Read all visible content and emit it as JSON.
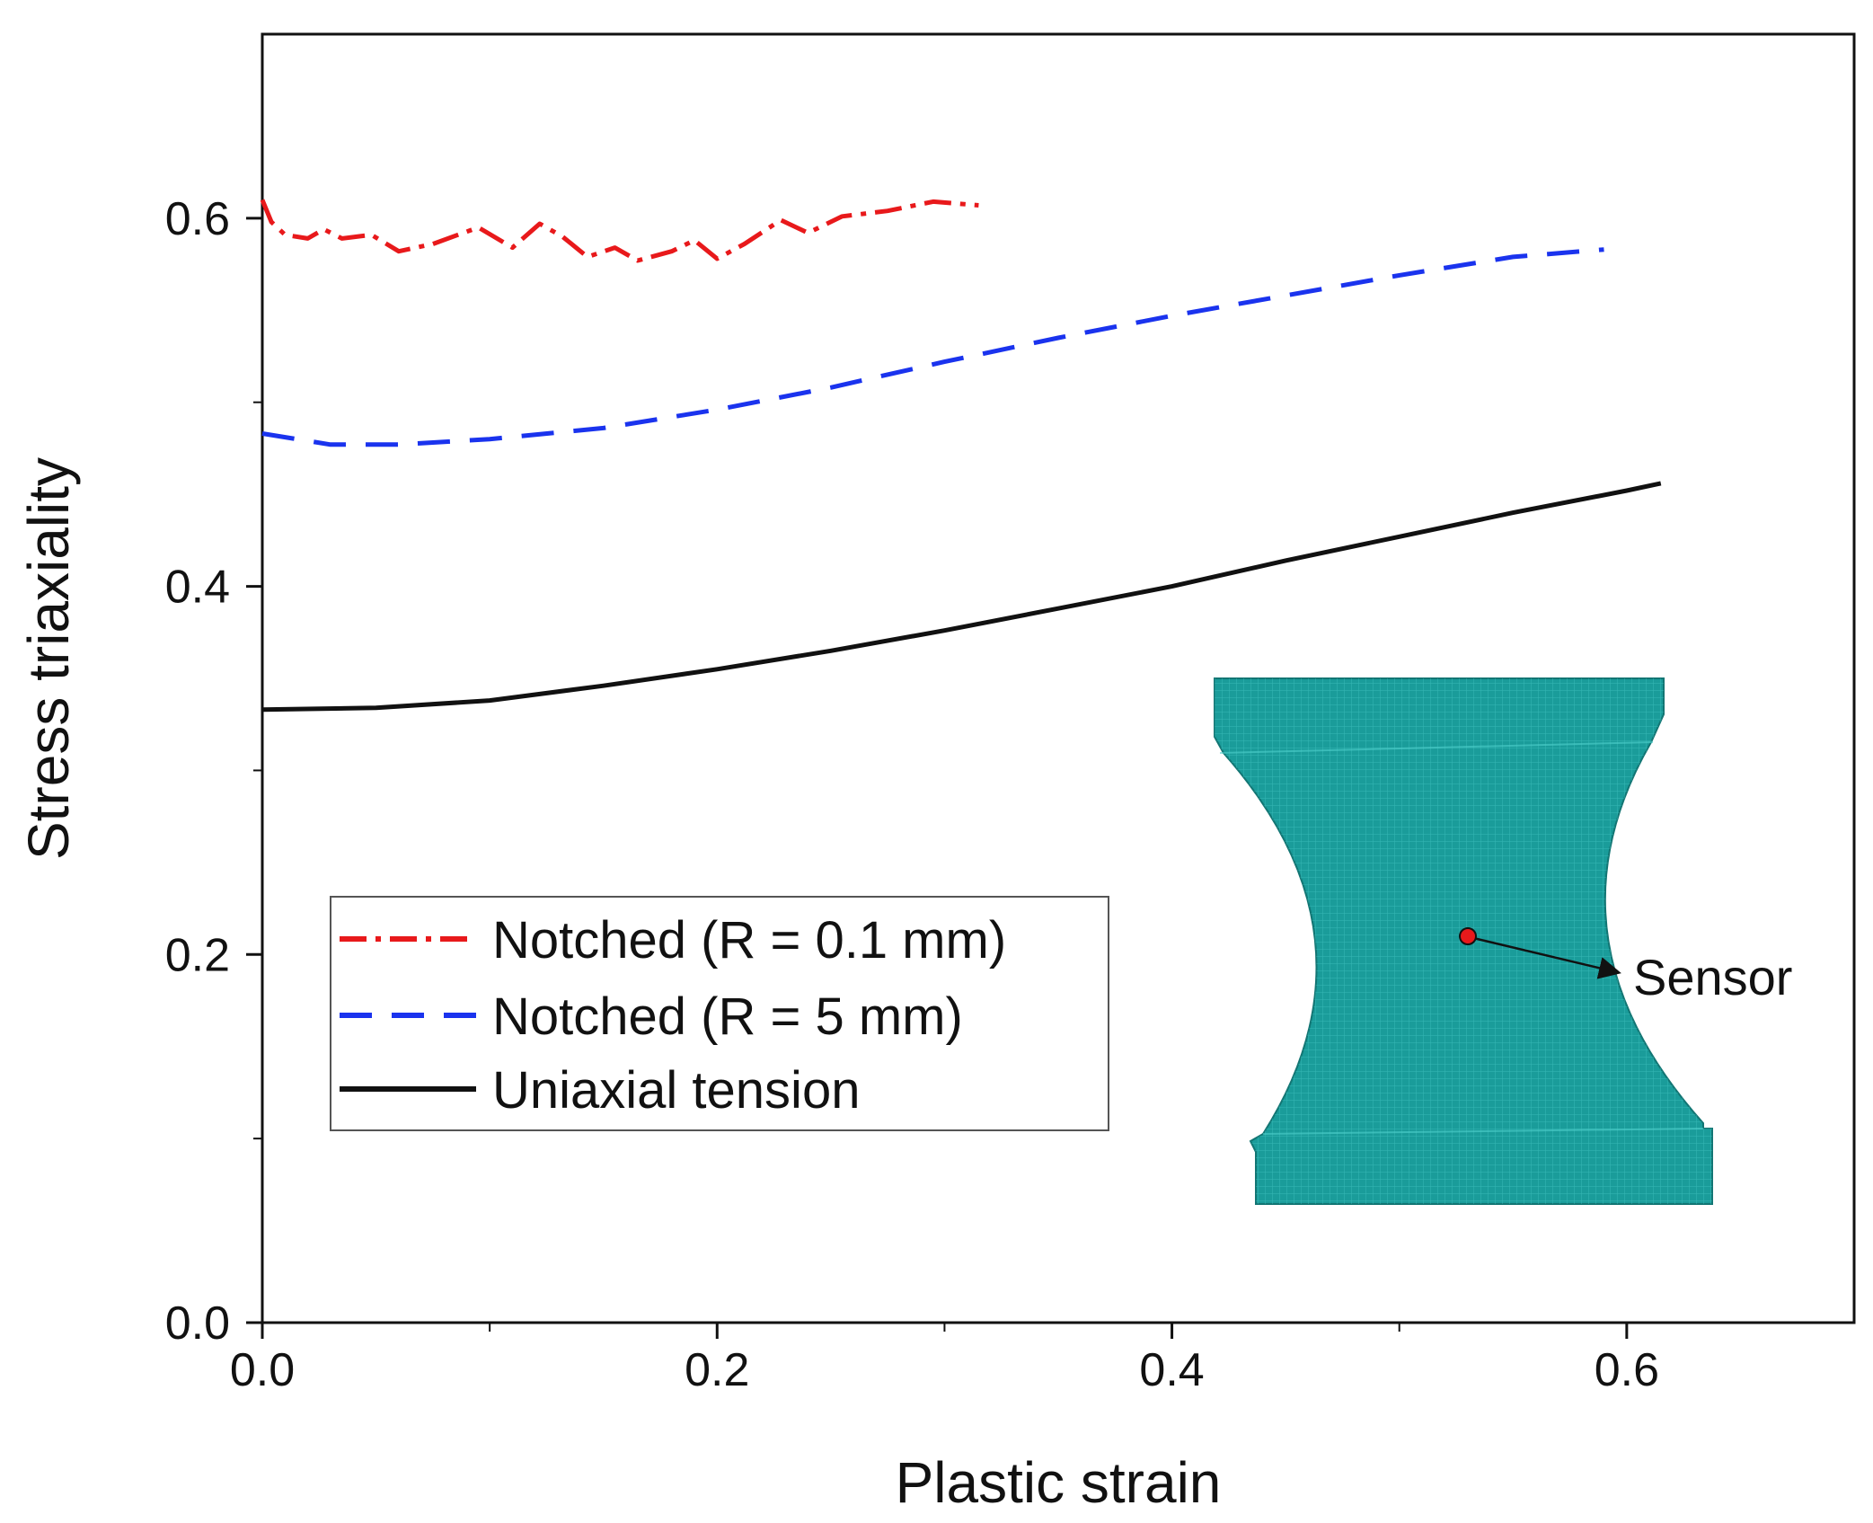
{
  "chart_data": {
    "type": "line",
    "title": "",
    "xlabel": "Plastic strain",
    "ylabel": "Stress triaxiality",
    "xlim": [
      0,
      0.7
    ],
    "ylim": [
      0,
      0.7
    ],
    "x_ticks": [
      0,
      0.2,
      0.4,
      0.6
    ],
    "x_tick_labels": [
      "0.0",
      "0.2",
      "0.4",
      "0.6"
    ],
    "x_minor_ticks": [
      0.1,
      0.3,
      0.5
    ],
    "y_ticks": [
      0,
      0.2,
      0.4,
      0.6
    ],
    "y_tick_labels": [
      "0.0",
      "0.2",
      "0.4",
      "0.6"
    ],
    "y_minor_ticks": [
      0.1,
      0.3,
      0.5
    ],
    "grid": false,
    "legend_position": "center-left",
    "series": [
      {
        "name": "Notched (R = 0.1 mm)",
        "color": "#e8191b",
        "dash": "dash-dot",
        "points": [
          [
            0.0,
            0.61
          ],
          [
            0.004,
            0.598
          ],
          [
            0.01,
            0.591
          ],
          [
            0.02,
            0.589
          ],
          [
            0.027,
            0.594
          ],
          [
            0.035,
            0.589
          ],
          [
            0.048,
            0.591
          ],
          [
            0.06,
            0.582
          ],
          [
            0.075,
            0.586
          ],
          [
            0.095,
            0.595
          ],
          [
            0.11,
            0.584
          ],
          [
            0.122,
            0.597
          ],
          [
            0.132,
            0.59
          ],
          [
            0.143,
            0.579
          ],
          [
            0.155,
            0.584
          ],
          [
            0.165,
            0.577
          ],
          [
            0.18,
            0.582
          ],
          [
            0.19,
            0.588
          ],
          [
            0.2,
            0.578
          ],
          [
            0.212,
            0.586
          ],
          [
            0.228,
            0.599
          ],
          [
            0.24,
            0.592
          ],
          [
            0.255,
            0.601
          ],
          [
            0.275,
            0.604
          ],
          [
            0.295,
            0.609
          ],
          [
            0.315,
            0.607
          ]
        ]
      },
      {
        "name": "Notched (R = 5 mm)",
        "color": "#1a33ee",
        "dash": "dash",
        "points": [
          [
            0.0,
            0.483
          ],
          [
            0.03,
            0.477
          ],
          [
            0.06,
            0.477
          ],
          [
            0.1,
            0.48
          ],
          [
            0.15,
            0.486
          ],
          [
            0.2,
            0.496
          ],
          [
            0.25,
            0.508
          ],
          [
            0.3,
            0.522
          ],
          [
            0.35,
            0.535
          ],
          [
            0.4,
            0.547
          ],
          [
            0.45,
            0.558
          ],
          [
            0.5,
            0.569
          ],
          [
            0.55,
            0.579
          ],
          [
            0.59,
            0.583
          ]
        ]
      },
      {
        "name": "Uniaxial tension",
        "color": "#111111",
        "dash": "solid",
        "points": [
          [
            0.0,
            0.333
          ],
          [
            0.05,
            0.334
          ],
          [
            0.1,
            0.338
          ],
          [
            0.15,
            0.346
          ],
          [
            0.2,
            0.355
          ],
          [
            0.25,
            0.365
          ],
          [
            0.3,
            0.376
          ],
          [
            0.35,
            0.388
          ],
          [
            0.4,
            0.4
          ],
          [
            0.45,
            0.414
          ],
          [
            0.5,
            0.427
          ],
          [
            0.55,
            0.44
          ],
          [
            0.6,
            0.452
          ],
          [
            0.615,
            0.456
          ]
        ]
      }
    ],
    "annotations": [
      {
        "text": "Sensor",
        "arrow": true
      }
    ]
  },
  "colors": {
    "specimen_fill": "#1a9c9a",
    "specimen_mesh": "#4fd0cc",
    "sensor_dot": "#e8191b",
    "axis": "#111111"
  },
  "inset_icon": "notched-specimen-mesh"
}
